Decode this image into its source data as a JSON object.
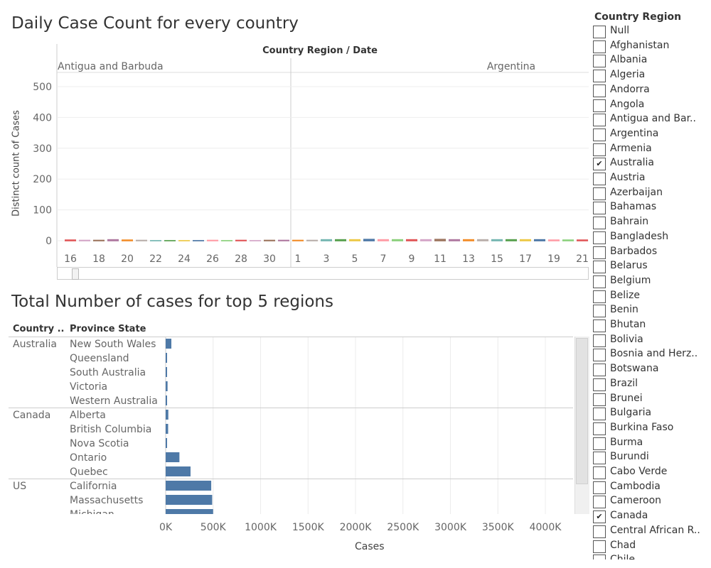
{
  "top_chart": {
    "title": "Daily Case Count for every country",
    "header": "Country Region  /  Date",
    "ylabel": "Distinct count of Cases"
  },
  "bottom_chart": {
    "title": "Total Number of cases for top 5 regions",
    "col_country": "Country ..",
    "col_province": "Province State",
    "xlabel": "Cases"
  },
  "filter": {
    "title": "Country Region",
    "items": [
      {
        "label": "Null",
        "checked": false
      },
      {
        "label": "Afghanistan",
        "checked": false
      },
      {
        "label": "Albania",
        "checked": false
      },
      {
        "label": "Algeria",
        "checked": false
      },
      {
        "label": "Andorra",
        "checked": false
      },
      {
        "label": "Angola",
        "checked": false
      },
      {
        "label": "Antigua and Bar..",
        "checked": false
      },
      {
        "label": "Argentina",
        "checked": false
      },
      {
        "label": "Armenia",
        "checked": false
      },
      {
        "label": "Australia",
        "checked": true
      },
      {
        "label": "Austria",
        "checked": false
      },
      {
        "label": "Azerbaijan",
        "checked": false
      },
      {
        "label": "Bahamas",
        "checked": false
      },
      {
        "label": "Bahrain",
        "checked": false
      },
      {
        "label": "Bangladesh",
        "checked": false
      },
      {
        "label": "Barbados",
        "checked": false
      },
      {
        "label": "Belarus",
        "checked": false
      },
      {
        "label": "Belgium",
        "checked": false
      },
      {
        "label": "Belize",
        "checked": false
      },
      {
        "label": "Benin",
        "checked": false
      },
      {
        "label": "Bhutan",
        "checked": false
      },
      {
        "label": "Bolivia",
        "checked": false
      },
      {
        "label": "Bosnia and Herz..",
        "checked": false
      },
      {
        "label": "Botswana",
        "checked": false
      },
      {
        "label": "Brazil",
        "checked": false
      },
      {
        "label": "Brunei",
        "checked": false
      },
      {
        "label": "Bulgaria",
        "checked": false
      },
      {
        "label": "Burkina Faso",
        "checked": false
      },
      {
        "label": "Burma",
        "checked": false
      },
      {
        "label": "Burundi",
        "checked": false
      },
      {
        "label": "Cabo Verde",
        "checked": false
      },
      {
        "label": "Cambodia",
        "checked": false
      },
      {
        "label": "Cameroon",
        "checked": false
      },
      {
        "label": "Canada",
        "checked": true
      },
      {
        "label": "Central African R..",
        "checked": false
      },
      {
        "label": "Chad",
        "checked": false
      },
      {
        "label": "Chile",
        "checked": false
      }
    ],
    "check_glyph": "✔"
  },
  "chart_data": [
    {
      "type": "bar",
      "title": "Daily Case Count for every country",
      "ylabel": "Distinct count of Cases",
      "ylim": [
        -20,
        550
      ],
      "yticks": [
        0,
        100,
        200,
        300,
        400,
        500
      ],
      "grid": true,
      "panels": [
        {
          "name": "Antigua and Barbuda",
          "tick_labels": [
            "16",
            "18",
            "20",
            "22",
            "24",
            "26",
            "28",
            "30"
          ],
          "values": [
            4,
            3,
            3,
            5,
            4,
            3,
            2,
            2,
            2,
            2,
            3,
            2,
            3,
            2,
            3,
            3
          ]
        },
        {
          "name": "Argentina",
          "tick_labels": [
            "1",
            "3",
            "5",
            "7",
            "9",
            "11",
            "13",
            "15",
            "17",
            "19",
            "21"
          ],
          "values": [
            3,
            3,
            5,
            5,
            5,
            6,
            5,
            5,
            5,
            5,
            6,
            5,
            5,
            5,
            5,
            5,
            5,
            5,
            4,
            4,
            4
          ]
        }
      ],
      "colors": [
        "#e15759",
        "#d4a6c8",
        "#9d7660",
        "#b07aa1",
        "#f28e2b",
        "#bab0ac",
        "#76b7b2",
        "#59a14f",
        "#edc948",
        "#4e79a7",
        "#ff9da7",
        "#8cd17d"
      ]
    },
    {
      "type": "bar",
      "orientation": "horizontal",
      "title": "Total Number of cases for top 5 regions",
      "xlabel": "Cases",
      "xlim": [
        -80000,
        4400000
      ],
      "xticks": [
        0,
        500000,
        1000000,
        1500000,
        2000000,
        2500000,
        3000000,
        3500000,
        4000000
      ],
      "xtick_labels": [
        "0K",
        "500K",
        "1000K",
        "1500K",
        "2000K",
        "2500K",
        "3000K",
        "3500K",
        "4000K"
      ],
      "color": "#4e79a7",
      "groups": [
        {
          "country": "Australia",
          "rows": [
            {
              "province": "New South Wales",
              "value": 60000
            },
            {
              "province": "Queensland",
              "value": 12000
            },
            {
              "province": "South Australia",
              "value": 3000
            },
            {
              "province": "Victoria",
              "value": 20000
            },
            {
              "province": "Western Australia",
              "value": 6000
            }
          ]
        },
        {
          "country": "Canada",
          "rows": [
            {
              "province": "Alberta",
              "value": 28000
            },
            {
              "province": "British Columbia",
              "value": 26000
            },
            {
              "province": "Nova Scotia",
              "value": 1500
            },
            {
              "province": "Ontario",
              "value": 145000
            },
            {
              "province": "Quebec",
              "value": 262000
            }
          ]
        },
        {
          "country": "US",
          "rows": [
            {
              "province": "California",
              "value": 480000
            },
            {
              "province": "Massachusetts",
              "value": 490000
            },
            {
              "province": "Michigan",
              "value": 500000
            }
          ]
        }
      ]
    }
  ]
}
